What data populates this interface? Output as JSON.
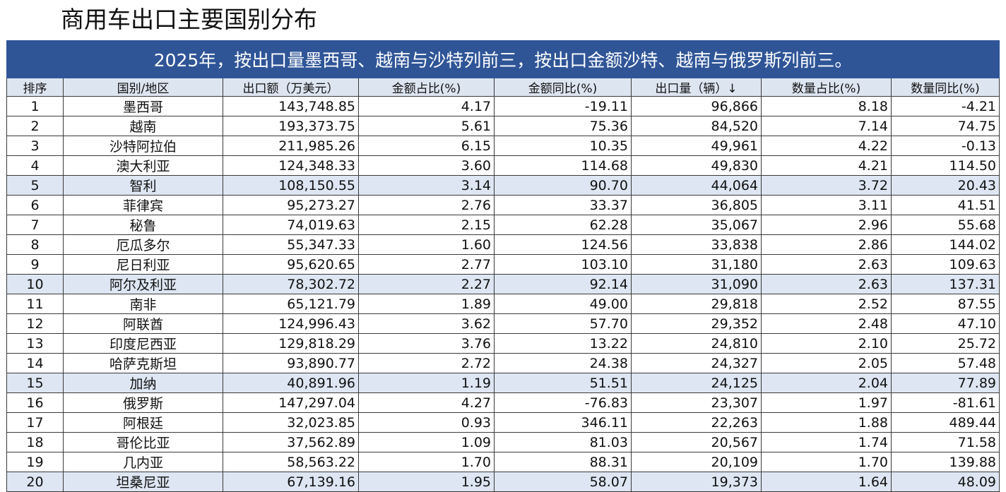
{
  "title": "商用车出口主要国别分布",
  "banner": "2025年，按出口量墨西哥、越南与沙特列前三，按出口金额沙特、越南与俄罗斯列前三。",
  "columns": [
    "排序",
    "国别/地区",
    "出口额（万美元）",
    "金额占比(%)",
    "金额同比(%)",
    "出口量（辆）↓",
    "数量占比(%)",
    "数量同比(%)"
  ],
  "highlight_color": "#dde6f2",
  "banner_color": "#2f5597",
  "rows": [
    {
      "rank": "1",
      "country": "墨西哥",
      "export_value": "143,748.85",
      "value_share": "4.17",
      "value_yoy": "-19.11",
      "volume": "96,866",
      "volume_share": "8.18",
      "volume_yoy": "-4.21",
      "highlight": false
    },
    {
      "rank": "2",
      "country": "越南",
      "export_value": "193,373.75",
      "value_share": "5.61",
      "value_yoy": "75.36",
      "volume": "84,520",
      "volume_share": "7.14",
      "volume_yoy": "74.75",
      "highlight": false
    },
    {
      "rank": "3",
      "country": "沙特阿拉伯",
      "export_value": "211,985.26",
      "value_share": "6.15",
      "value_yoy": "10.35",
      "volume": "49,961",
      "volume_share": "4.22",
      "volume_yoy": "-0.13",
      "highlight": false
    },
    {
      "rank": "4",
      "country": "澳大利亚",
      "export_value": "124,348.33",
      "value_share": "3.60",
      "value_yoy": "114.68",
      "volume": "49,830",
      "volume_share": "4.21",
      "volume_yoy": "114.50",
      "highlight": false
    },
    {
      "rank": "5",
      "country": "智利",
      "export_value": "108,150.55",
      "value_share": "3.14",
      "value_yoy": "90.70",
      "volume": "44,064",
      "volume_share": "3.72",
      "volume_yoy": "20.43",
      "highlight": true
    },
    {
      "rank": "6",
      "country": "菲律宾",
      "export_value": "95,273.27",
      "value_share": "2.76",
      "value_yoy": "33.37",
      "volume": "36,805",
      "volume_share": "3.11",
      "volume_yoy": "41.51",
      "highlight": false
    },
    {
      "rank": "7",
      "country": "秘鲁",
      "export_value": "74,019.63",
      "value_share": "2.15",
      "value_yoy": "62.28",
      "volume": "35,067",
      "volume_share": "2.96",
      "volume_yoy": "55.68",
      "highlight": false
    },
    {
      "rank": "8",
      "country": "厄瓜多尔",
      "export_value": "55,347.33",
      "value_share": "1.60",
      "value_yoy": "124.56",
      "volume": "33,838",
      "volume_share": "2.86",
      "volume_yoy": "144.02",
      "highlight": false
    },
    {
      "rank": "9",
      "country": "尼日利亚",
      "export_value": "95,620.65",
      "value_share": "2.77",
      "value_yoy": "103.10",
      "volume": "31,180",
      "volume_share": "2.63",
      "volume_yoy": "109.63",
      "highlight": false
    },
    {
      "rank": "10",
      "country": "阿尔及利亚",
      "export_value": "78,302.72",
      "value_share": "2.27",
      "value_yoy": "92.14",
      "volume": "31,090",
      "volume_share": "2.63",
      "volume_yoy": "137.31",
      "highlight": true
    },
    {
      "rank": "11",
      "country": "南非",
      "export_value": "65,121.79",
      "value_share": "1.89",
      "value_yoy": "49.00",
      "volume": "29,818",
      "volume_share": "2.52",
      "volume_yoy": "87.55",
      "highlight": false
    },
    {
      "rank": "12",
      "country": "阿联酋",
      "export_value": "124,996.43",
      "value_share": "3.62",
      "value_yoy": "57.70",
      "volume": "29,352",
      "volume_share": "2.48",
      "volume_yoy": "47.10",
      "highlight": false
    },
    {
      "rank": "13",
      "country": "印度尼西亚",
      "export_value": "129,818.29",
      "value_share": "3.76",
      "value_yoy": "13.22",
      "volume": "24,810",
      "volume_share": "2.10",
      "volume_yoy": "25.72",
      "highlight": false
    },
    {
      "rank": "14",
      "country": "哈萨克斯坦",
      "export_value": "93,890.77",
      "value_share": "2.72",
      "value_yoy": "24.38",
      "volume": "24,327",
      "volume_share": "2.05",
      "volume_yoy": "57.48",
      "highlight": false
    },
    {
      "rank": "15",
      "country": "加纳",
      "export_value": "40,891.96",
      "value_share": "1.19",
      "value_yoy": "51.51",
      "volume": "24,125",
      "volume_share": "2.04",
      "volume_yoy": "77.89",
      "highlight": true
    },
    {
      "rank": "16",
      "country": "俄罗斯",
      "export_value": "147,297.04",
      "value_share": "4.27",
      "value_yoy": "-76.83",
      "volume": "23,307",
      "volume_share": "1.97",
      "volume_yoy": "-81.61",
      "highlight": false
    },
    {
      "rank": "17",
      "country": "阿根廷",
      "export_value": "32,023.85",
      "value_share": "0.93",
      "value_yoy": "346.11",
      "volume": "22,263",
      "volume_share": "1.88",
      "volume_yoy": "489.44",
      "highlight": false
    },
    {
      "rank": "18",
      "country": "哥伦比亚",
      "export_value": "37,562.89",
      "value_share": "1.09",
      "value_yoy": "81.03",
      "volume": "20,567",
      "volume_share": "1.74",
      "volume_yoy": "71.58",
      "highlight": false
    },
    {
      "rank": "19",
      "country": "几内亚",
      "export_value": "58,563.22",
      "value_share": "1.70",
      "value_yoy": "88.31",
      "volume": "20,109",
      "volume_share": "1.70",
      "volume_yoy": "139.88",
      "highlight": false
    },
    {
      "rank": "20",
      "country": "坦桑尼亚",
      "export_value": "67,139.16",
      "value_share": "1.95",
      "value_yoy": "58.07",
      "volume": "19,373",
      "volume_share": "1.64",
      "volume_yoy": "48.09",
      "highlight": true
    }
  ]
}
